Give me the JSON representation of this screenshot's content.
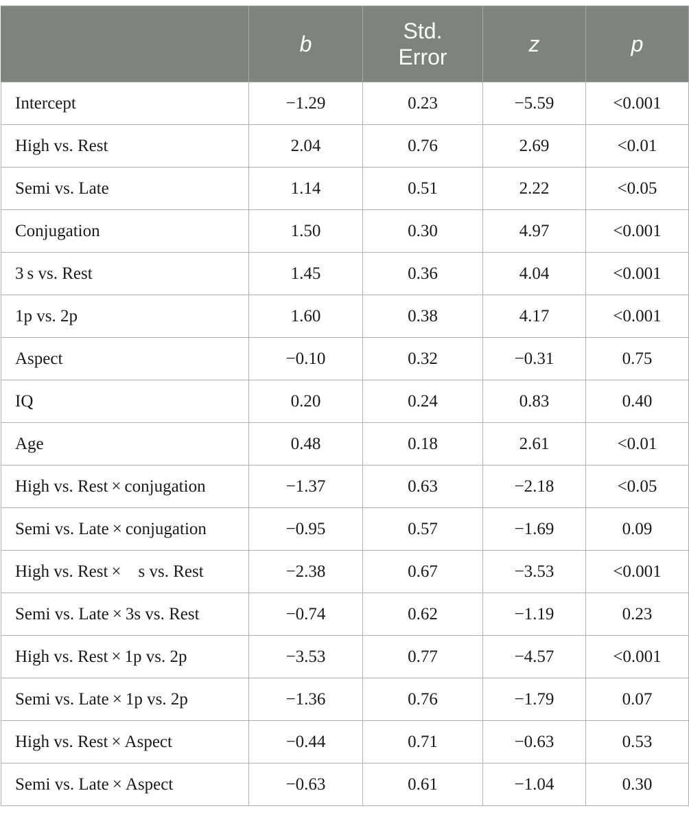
{
  "table": {
    "headers": [
      "",
      "b",
      "Std. Error",
      "z",
      "p"
    ],
    "rows": [
      [
        "Intercept",
        "−1.29",
        "0.23",
        "−5.59",
        "<0.001"
      ],
      [
        "High vs. Rest",
        "2.04",
        "0.76",
        "2.69",
        "<0.01"
      ],
      [
        "Semi vs. Late",
        "1.14",
        "0.51",
        "2.22",
        "<0.05"
      ],
      [
        "Conjugation",
        "1.50",
        "0.30",
        "4.97",
        "<0.001"
      ],
      [
        "3 s vs. Rest",
        "1.45",
        "0.36",
        "4.04",
        "<0.001"
      ],
      [
        "1p vs. 2p",
        "1.60",
        "0.38",
        "4.17",
        "<0.001"
      ],
      [
        "Aspect",
        "−0.10",
        "0.32",
        "−0.31",
        "0.75"
      ],
      [
        "IQ",
        "0.20",
        "0.24",
        "0.83",
        "0.40"
      ],
      [
        "Age",
        "0.48",
        "0.18",
        "2.61",
        "<0.01"
      ],
      [
        "High vs. Rest × conjugation",
        "−1.37",
        "0.63",
        "−2.18",
        "<0.05"
      ],
      [
        "Semi vs. Late × conjugation",
        "−0.95",
        "0.57",
        "−1.69",
        "0.09"
      ],
      [
        "High vs. Rest × s vs. Rest",
        "−2.38",
        "0.67",
        "−3.53",
        "<0.001"
      ],
      [
        "Semi vs. Late × 3s vs. Rest",
        "−0.74",
        "0.62",
        "−1.19",
        "0.23"
      ],
      [
        "High vs. Rest × 1p vs. 2p",
        "−3.53",
        "0.77",
        "−4.57",
        "<0.001"
      ],
      [
        "Semi vs. Late × 1p vs. 2p",
        "−1.36",
        "0.76",
        "−1.79",
        "0.07"
      ],
      [
        "High vs. Rest × Aspect",
        "−0.44",
        "0.71",
        "−0.63",
        "0.53"
      ],
      [
        "Semi vs. Late × Aspect",
        "−0.63",
        "0.61",
        "−1.04",
        "0.30"
      ]
    ]
  },
  "colors": {
    "header_background": "#7f8380",
    "header_text": "#ffffff",
    "body_text": "#1a1a1a",
    "grid_line": "#b0b0b0"
  }
}
